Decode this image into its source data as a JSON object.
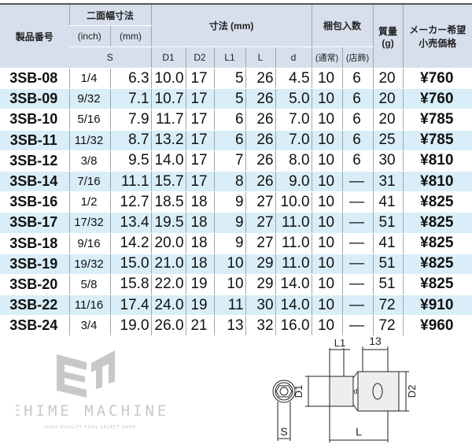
{
  "table": {
    "headers": {
      "product_no": "製品番号",
      "across_flats": "二面幅寸法",
      "inch": "(inch)",
      "mm": "(mm)",
      "s": "S",
      "dimensions": "寸法 (mm)",
      "d1": "D1",
      "d2": "D2",
      "l1": "L1",
      "l": "L",
      "d": "d",
      "packing": "梱包入数",
      "normal": "(通常)",
      "shop": "(店飾)",
      "mass": "質量",
      "mass_unit": "(g)",
      "price_line1": "メーカー希望",
      "price_line2": "小売価格"
    },
    "rows": [
      [
        "3SB-08",
        "1/4",
        "6.3",
        "10.0",
        "17",
        "5",
        "26",
        "4.5",
        "10",
        "6",
        "20",
        "¥760"
      ],
      [
        "3SB-09",
        "9/32",
        "7.1",
        "10.7",
        "17",
        "5",
        "26",
        "5.0",
        "10",
        "6",
        "20",
        "¥760"
      ],
      [
        "3SB-10",
        "5/16",
        "7.9",
        "11.7",
        "17",
        "6",
        "26",
        "7.0",
        "10",
        "6",
        "20",
        "¥785"
      ],
      [
        "3SB-11",
        "11/32",
        "8.7",
        "13.2",
        "17",
        "6",
        "26",
        "7.0",
        "10",
        "6",
        "25",
        "¥785"
      ],
      [
        "3SB-12",
        "3/8",
        "9.5",
        "14.0",
        "17",
        "7",
        "26",
        "8.0",
        "10",
        "6",
        "30",
        "¥810"
      ],
      [
        "3SB-14",
        "7/16",
        "11.1",
        "15.7",
        "17",
        "8",
        "26",
        "9.0",
        "10",
        "—",
        "31",
        "¥810"
      ],
      [
        "3SB-16",
        "1/2",
        "12.7",
        "18.5",
        "18",
        "9",
        "27",
        "10.0",
        "10",
        "—",
        "41",
        "¥825"
      ],
      [
        "3SB-17",
        "17/32",
        "13.4",
        "19.5",
        "18",
        "9",
        "27",
        "11.0",
        "10",
        "—",
        "51",
        "¥825"
      ],
      [
        "3SB-18",
        "9/16",
        "14.2",
        "20.0",
        "18",
        "9",
        "27",
        "11.0",
        "10",
        "—",
        "41",
        "¥825"
      ],
      [
        "3SB-19",
        "19/32",
        "15.0",
        "21.0",
        "18",
        "10",
        "29",
        "11.0",
        "10",
        "—",
        "51",
        "¥825"
      ],
      [
        "3SB-20",
        "5/8",
        "15.8",
        "22.0",
        "19",
        "10",
        "29",
        "14.0",
        "10",
        "—",
        "51",
        "¥825"
      ],
      [
        "3SB-22",
        "11/16",
        "17.4",
        "24.0",
        "19",
        "11",
        "30",
        "14.0",
        "10",
        "—",
        "72",
        "¥910"
      ],
      [
        "3SB-24",
        "3/4",
        "19.0",
        "26.0",
        "21",
        "13",
        "32",
        "16.0",
        "10",
        "—",
        "72",
        "¥960"
      ]
    ]
  },
  "logo": {
    "name": "EHIME MACHINE",
    "tagline": "HIGH QUALITY TOOL SELECT SHOP"
  },
  "diagram": {
    "s": "S",
    "l1": "L1",
    "drive": "13",
    "d1": "D1",
    "d2": "D2",
    "d": "d",
    "l": "L"
  },
  "colors": {
    "header_bg": "#d7dfec",
    "alt_row": "#d9eef8"
  }
}
